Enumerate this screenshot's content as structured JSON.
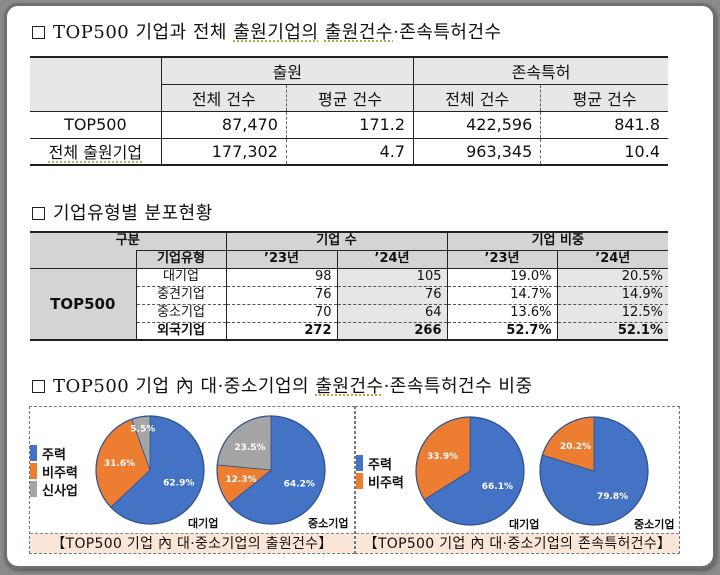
{
  "colors": {
    "main": "#4472c4",
    "nonmain": "#ed7d31",
    "new": "#a5a5a5",
    "caption_bg": "#fbe5d6",
    "header_gray": "#e7e7e7"
  },
  "section1": {
    "title_prefix": "TOP500 기업과 전체 ",
    "title_u1": "출원기업의",
    "title_mid": " ",
    "title_u2": "출원건수",
    "title_suffix": "·존속특허건수",
    "table": {
      "group_headers": [
        "출원",
        "존속특허"
      ],
      "sub_headers": [
        "전체 건수",
        "평균 건수",
        "전체 건수",
        "평균 건수"
      ],
      "rows": [
        {
          "label": "TOP500",
          "values": [
            "87,470",
            "171.2",
            "422,596",
            "841.8"
          ]
        },
        {
          "label": "전체 출원기업",
          "values": [
            "177,302",
            "4.7",
            "963,345",
            "10.4"
          ]
        }
      ]
    }
  },
  "section2": {
    "title": "기업유형별 분포현황",
    "table": {
      "header_category": "구분",
      "header_type": "기업유형",
      "group_headers": [
        "기업 수",
        "기업 비중"
      ],
      "years": [
        "’23년",
        "’24년",
        "’23년",
        "’24년"
      ],
      "group_label": "TOP500",
      "rows": [
        {
          "type": "대기업",
          "values": [
            "98",
            "105",
            "19.0%",
            "20.5%"
          ]
        },
        {
          "type": "중견기업",
          "values": [
            "76",
            "76",
            "14.7%",
            "14.9%"
          ]
        },
        {
          "type": "중소기업",
          "values": [
            "70",
            "64",
            "13.6%",
            "12.5%"
          ]
        },
        {
          "type": "외국기업",
          "values": [
            "272",
            "266",
            "52.7%",
            "52.1%"
          ]
        }
      ]
    }
  },
  "section3": {
    "title_prefix": "TOP500 기업 內 대·중소기업의 ",
    "title_u": "출원건수",
    "title_suffix": "·존속특허건수 비중",
    "panels": [
      {
        "caption": "【TOP500 기업 內 대·중소기업의 출원건수】",
        "legend": [
          "주력",
          "비주력",
          "신사업"
        ],
        "pies": [
          {
            "name": "대기업",
            "slices": [
              62.9,
              31.6,
              5.5
            ],
            "labels": [
              "62.9%",
              "31.6%",
              "5.5%"
            ]
          },
          {
            "name": "중소기업",
            "slices": [
              64.2,
              12.3,
              23.5
            ],
            "labels": [
              "64.2%",
              "12.3%",
              "23.5%"
            ]
          }
        ]
      },
      {
        "caption": "【TOP500 기업 內 대·중소기업의 존속특허건수】",
        "legend": [
          "주력",
          "비주력"
        ],
        "pies": [
          {
            "name": "대기업",
            "slices": [
              66.1,
              33.9
            ],
            "labels": [
              "66.1%",
              "33.9%"
            ]
          },
          {
            "name": "중소기업",
            "slices": [
              79.8,
              20.2
            ],
            "labels": [
              "79.8%",
              "20.2%"
            ]
          }
        ]
      }
    ]
  },
  "chart_data": [
    {
      "type": "pie",
      "title": "TOP500 기업 內 대·중소기업의 출원건수 - 대기업",
      "categories": [
        "주력",
        "비주력",
        "신사업"
      ],
      "values": [
        62.9,
        31.6,
        5.5
      ]
    },
    {
      "type": "pie",
      "title": "TOP500 기업 內 대·중소기업의 출원건수 - 중소기업",
      "categories": [
        "주력",
        "비주력",
        "신사업"
      ],
      "values": [
        64.2,
        12.3,
        23.5
      ]
    },
    {
      "type": "pie",
      "title": "TOP500 기업 內 대·중소기업의 존속특허건수 - 대기업",
      "categories": [
        "주력",
        "비주력"
      ],
      "values": [
        66.1,
        33.9
      ]
    },
    {
      "type": "pie",
      "title": "TOP500 기업 內 대·중소기업의 존속특허건수 - 중소기업",
      "categories": [
        "주력",
        "비주력"
      ],
      "values": [
        79.8,
        20.2
      ]
    }
  ]
}
